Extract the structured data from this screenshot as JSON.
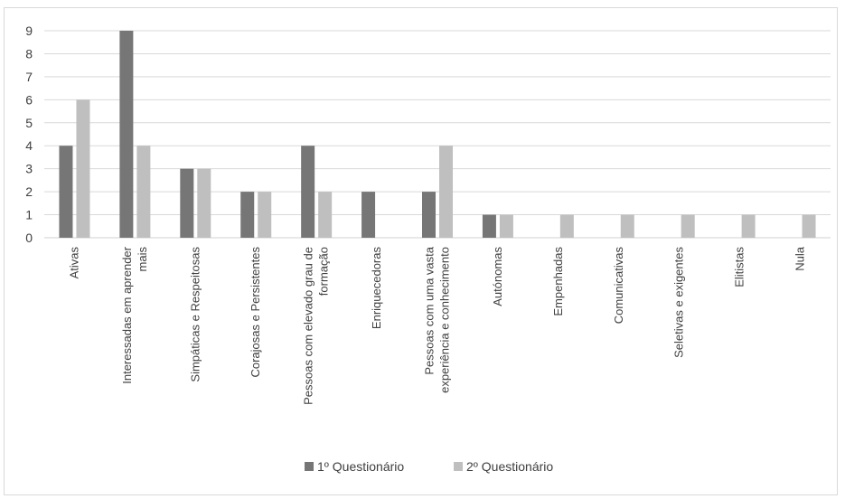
{
  "chart_data": {
    "type": "bar",
    "title": "",
    "xlabel": "",
    "ylabel": "",
    "ylim": [
      0,
      9
    ],
    "yticks": [
      0,
      1,
      2,
      3,
      4,
      5,
      6,
      7,
      8,
      9
    ],
    "grid": true,
    "legend_position": "bottom",
    "categories": [
      [
        "Ativas"
      ],
      [
        "Interessadas em aprender",
        "mais"
      ],
      [
        "Simpáticas e Respeitosas"
      ],
      [
        "Corajosas e Persistentes"
      ],
      [
        "Pessoas com elevado grau de",
        "formação"
      ],
      [
        "Enriquecedoras"
      ],
      [
        "Pessoas com uma vasta",
        "experiência e conhecimento"
      ],
      [
        "Autónomas"
      ],
      [
        "Empenhadas"
      ],
      [
        "Comunicativas"
      ],
      [
        "Seletivas e exigentes"
      ],
      [
        "Elitistas"
      ],
      [
        "Nula"
      ]
    ],
    "series": [
      {
        "name": "1º Questionário",
        "color": "#767676",
        "values": [
          4,
          9,
          3,
          2,
          4,
          2,
          2,
          1,
          0,
          0,
          0,
          0,
          0
        ]
      },
      {
        "name": "2º Questionário",
        "color": "#bfbfbf",
        "values": [
          6,
          4,
          3,
          2,
          2,
          0,
          4,
          1,
          1,
          1,
          1,
          1,
          1
        ]
      }
    ]
  }
}
